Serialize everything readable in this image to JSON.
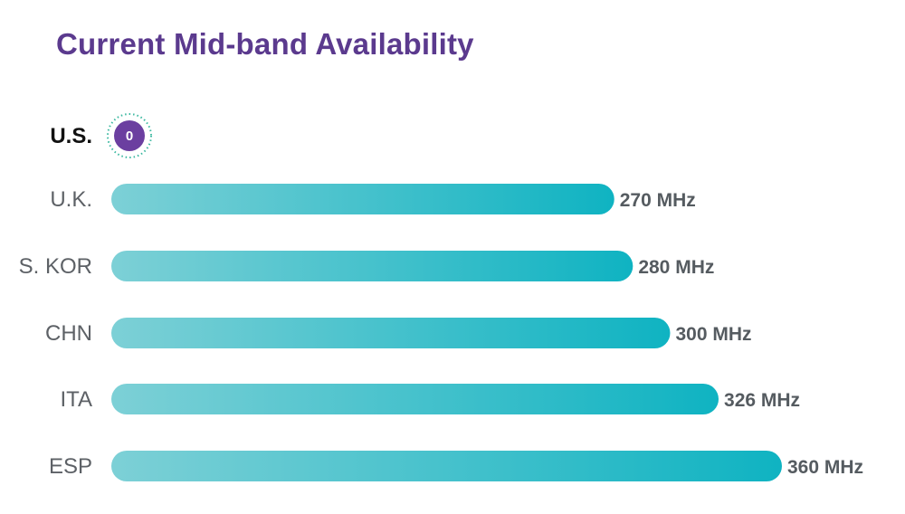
{
  "chart_data": {
    "type": "bar",
    "orientation": "horizontal",
    "title": "Current Mid-band Availability",
    "categories": [
      "U.S.",
      "U.K.",
      "S. KOR",
      "CHN",
      "ITA",
      "ESP"
    ],
    "values": [
      0,
      270,
      280,
      300,
      326,
      360
    ],
    "value_labels": [
      "0",
      "270 MHz",
      "280 MHz",
      "300 MHz",
      "326 MHz",
      "360 MHz"
    ],
    "unit": "MHz",
    "highlight_category": "U.S.",
    "grid": false,
    "legend": "none"
  },
  "colors": {
    "title": "#5b3a8e",
    "bar_start": "#7dd0d6",
    "bar_end": "#0fb3c2",
    "badge": "#6b3fa0",
    "badge_ring": "#3bb8a0",
    "value_text": "#555b60",
    "category_text": "#5d6166",
    "highlight_text": "#111111"
  }
}
